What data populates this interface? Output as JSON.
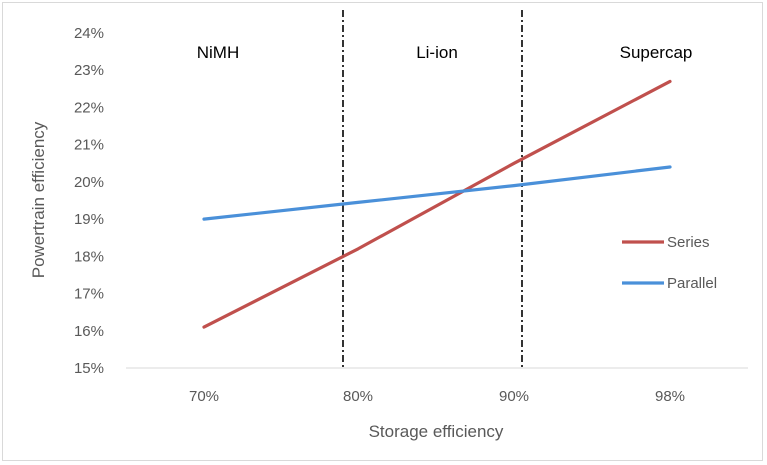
{
  "chart_data": {
    "type": "line",
    "xlabel": "Storage efficiency",
    "ylabel": "Powertrain efficiency",
    "categories": [
      "70%",
      "80%",
      "90%",
      "98%"
    ],
    "y_ticks": [
      "15%",
      "16%",
      "17%",
      "18%",
      "19%",
      "20%",
      "21%",
      "22%",
      "23%",
      "24%"
    ],
    "ylim": [
      15,
      24
    ],
    "grid": false,
    "legend_position": "right",
    "series": [
      {
        "name": "Series",
        "color": "#c0504d",
        "values": [
          16.1,
          18.2,
          20.5,
          22.7
        ]
      },
      {
        "name": "Parallel",
        "color": "#4a90d9",
        "values": [
          19.0,
          19.45,
          19.9,
          20.4
        ]
      }
    ],
    "regions": [
      "NiMH",
      "Li-ion",
      "Supercap"
    ],
    "divider_style": "dash-dot"
  }
}
